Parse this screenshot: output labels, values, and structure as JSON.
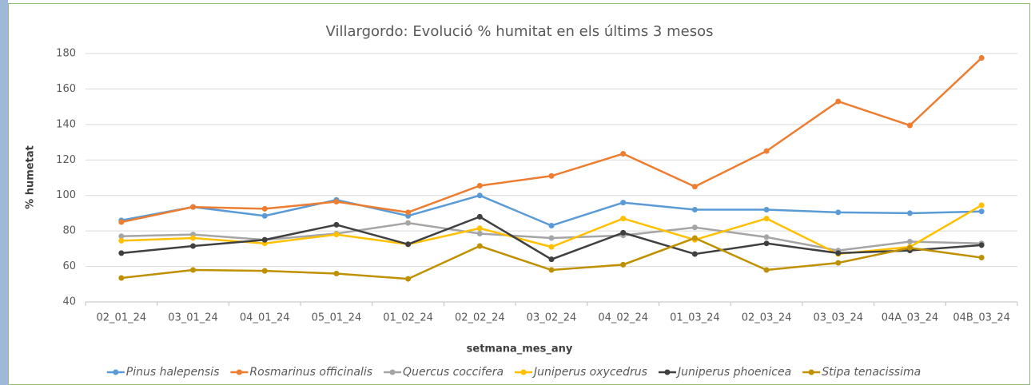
{
  "chart_data": {
    "type": "line",
    "title": "Villargordo: Evolució % humitat en els últims 3 mesos",
    "x_label": "setmana_mes_any",
    "y_label": "% humetat",
    "categories": [
      "02_01_24",
      "03_01_24",
      "04_01_24",
      "05_01_24",
      "01_02_24",
      "02_02_24",
      "03_02_24",
      "04_02_24",
      "01_03_24",
      "02_03_24",
      "03_03_24",
      "04A_03_24",
      "04B_03_24"
    ],
    "series": [
      {
        "name": "Pinus halepensis",
        "color": "#5b9bd5",
        "values": [
          86,
          93.5,
          88.5,
          97.5,
          88.5,
          100,
          83,
          96,
          92,
          92,
          90.5,
          90,
          91
        ]
      },
      {
        "name": "Rosmarinus officinalis",
        "color": "#ed7d31",
        "values": [
          85,
          93.5,
          92.5,
          96.5,
          90.5,
          105.5,
          111,
          123.5,
          105,
          125,
          153,
          139.5,
          177.5
        ]
      },
      {
        "name": "Quercus coccifera",
        "color": "#a5a5a5",
        "values": [
          77,
          78,
          75,
          78.5,
          84.5,
          78.5,
          76,
          77.5,
          82,
          76.5,
          69,
          74,
          73
        ]
      },
      {
        "name": "Juniperus oxycedrus",
        "color": "#ffc000",
        "values": [
          74.5,
          76,
          73,
          78,
          72.5,
          81.5,
          71,
          87,
          75,
          87,
          67,
          71,
          94.5
        ]
      },
      {
        "name": "Juniperus phoenicea",
        "color": "#404040",
        "values": [
          67.5,
          71.5,
          75,
          83.5,
          72.5,
          88,
          64,
          79,
          67,
          73,
          67.5,
          69,
          72
        ]
      },
      {
        "name": "Stipa tenacissima",
        "color": "#bf9000",
        "values": [
          53.5,
          58,
          57.5,
          56,
          53,
          71.5,
          58,
          61,
          76,
          58,
          62,
          70.5,
          65
        ]
      }
    ],
    "ylim": [
      40,
      180
    ],
    "yticks": [
      40,
      60,
      80,
      100,
      120,
      140,
      160,
      180
    ],
    "grid": true,
    "legend": "bottom"
  }
}
